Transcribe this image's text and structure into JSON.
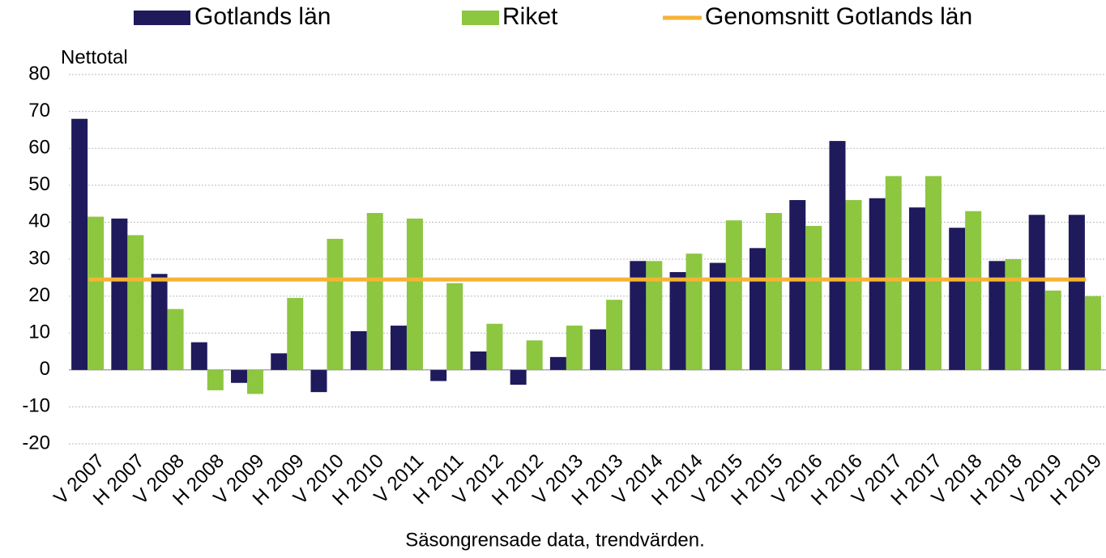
{
  "chart_data": {
    "type": "bar",
    "y_axis_label": "Nettotal",
    "x_axis_label": "Säsongrensade data, trendvärden.",
    "categories": [
      "V 2007",
      "H 2007",
      "V 2008",
      "H 2008",
      "V 2009",
      "H 2009",
      "V 2010",
      "H 2010",
      "V 2011",
      "H 2011",
      "V 2012",
      "H 2012",
      "V 2013",
      "H 2013",
      "V 2014",
      "H 2014",
      "V 2015",
      "H 2015",
      "V 2016",
      "H 2016",
      "V 2017",
      "H 2017",
      "V 2018",
      "H 2018",
      "V 2019",
      "H 2019"
    ],
    "series": [
      {
        "name": "Gotlands län",
        "type": "bar",
        "color": "#1f1a5c",
        "values": [
          68,
          41,
          26,
          7.5,
          -3.5,
          4.5,
          -6,
          10.5,
          12,
          -3,
          5,
          -4,
          3.5,
          11,
          29.5,
          26.5,
          29,
          33,
          46,
          62,
          46.5,
          44,
          38.5,
          29.5,
          42,
          42
        ]
      },
      {
        "name": "Riket",
        "type": "bar",
        "color": "#8dc63f",
        "values": [
          41.5,
          36.5,
          16.5,
          -5.5,
          -6.5,
          19.5,
          35.5,
          42.5,
          41,
          23.5,
          12.5,
          8,
          12,
          19,
          29.5,
          31.5,
          40.5,
          42.5,
          39,
          46,
          52.5,
          52.5,
          43,
          30,
          21.5,
          20
        ]
      },
      {
        "name": "Genomsnitt Gotlands län",
        "type": "line",
        "color": "#f5b335",
        "values": [
          24.5,
          24.5,
          24.5,
          24.5,
          24.5,
          24.5,
          24.5,
          24.5,
          24.5,
          24.5,
          24.5,
          24.5,
          24.5,
          24.5,
          24.5,
          24.5,
          24.5,
          24.5,
          24.5,
          24.5,
          24.5,
          24.5,
          24.5,
          24.5,
          24.5,
          24.5
        ]
      }
    ],
    "ylim": [
      -20,
      80
    ],
    "yticks": [
      -20,
      -10,
      0,
      10,
      20,
      30,
      40,
      50,
      60,
      70,
      80
    ],
    "grid": true
  }
}
